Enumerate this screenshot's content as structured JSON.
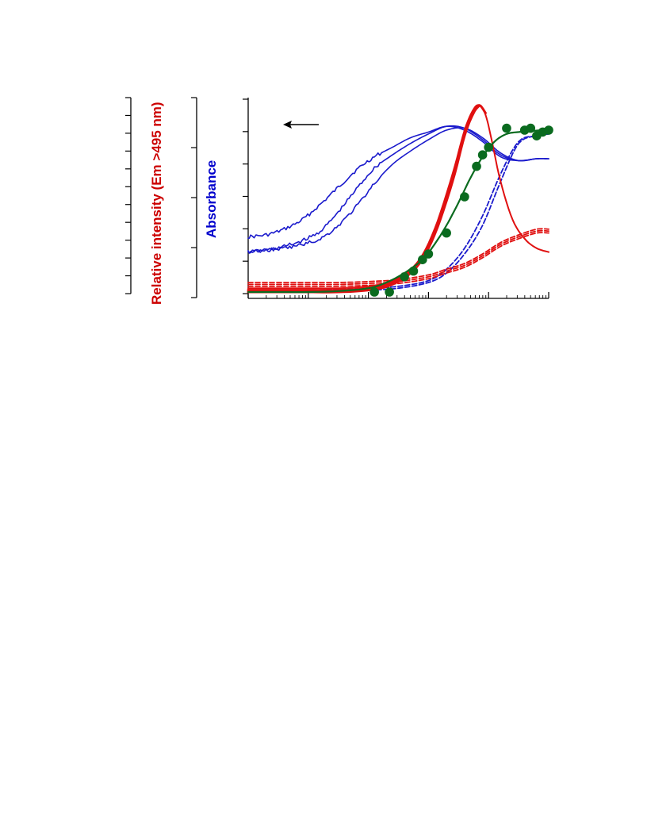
{
  "chart_data": {
    "type": "line",
    "x_scale": "log",
    "axes": {
      "relative_intensity": {
        "label": "Relative intensity (Em >495 nm)",
        "color": "#cc0000",
        "tick_count": 12
      },
      "absorbance": {
        "label": "Absorbance",
        "color": "#0000cc",
        "tick_count": 5
      },
      "main": {
        "tick_count": 7
      }
    },
    "arrow": {
      "direction": "left"
    },
    "colors": {
      "blue": "#1a1acc",
      "red": "#e01010",
      "green": "#0a6b1f",
      "black": "#000000"
    },
    "x_decades": 5,
    "series": [
      {
        "style": "solid",
        "color": "blue",
        "width": 1.6,
        "noise": 1,
        "x": [
          0,
          0.3,
          0.6,
          0.9,
          1.2,
          1.5,
          1.8,
          2.1,
          2.4,
          2.7,
          3.0,
          3.3,
          3.6,
          3.9,
          4.2,
          4.5,
          4.8,
          5.0
        ],
        "y": [
          0.29,
          0.3,
          0.33,
          0.38,
          0.46,
          0.55,
          0.64,
          0.71,
          0.76,
          0.81,
          0.84,
          0.87,
          0.85,
          0.79,
          0.71,
          0.69,
          0.7,
          0.7
        ]
      },
      {
        "style": "solid",
        "color": "blue",
        "width": 1.6,
        "noise": 1,
        "x": [
          0,
          0.3,
          0.6,
          0.9,
          1.2,
          1.5,
          1.8,
          2.1,
          2.4,
          2.7,
          3.0,
          3.3,
          3.6,
          3.9,
          4.2,
          4.5,
          4.8,
          5.0
        ],
        "y": [
          0.21,
          0.22,
          0.24,
          0.27,
          0.32,
          0.42,
          0.54,
          0.65,
          0.72,
          0.78,
          0.83,
          0.87,
          0.86,
          0.8,
          0.72,
          0.69,
          0.7,
          0.7
        ]
      },
      {
        "style": "solid",
        "color": "blue",
        "width": 1.6,
        "noise": 1,
        "x": [
          0,
          0.3,
          0.6,
          0.9,
          1.2,
          1.5,
          1.8,
          2.1,
          2.4,
          2.7,
          3.0,
          3.3,
          3.6,
          3.9,
          4.2,
          4.5,
          4.8,
          5.0
        ],
        "y": [
          0.21,
          0.22,
          0.23,
          0.25,
          0.28,
          0.35,
          0.45,
          0.57,
          0.67,
          0.74,
          0.8,
          0.85,
          0.86,
          0.81,
          0.73,
          0.69,
          0.7,
          0.7
        ]
      },
      {
        "style": "dashed",
        "color": "blue",
        "width": 1.8,
        "x": [
          0,
          0.5,
          1,
          1.5,
          2,
          2.5,
          3,
          3.3,
          3.6,
          3.9,
          4.2,
          4.5,
          4.8,
          5.0
        ],
        "y": [
          0.0,
          0.0,
          0.0,
          0.005,
          0.01,
          0.02,
          0.05,
          0.1,
          0.2,
          0.35,
          0.58,
          0.78,
          0.82,
          0.83
        ]
      },
      {
        "style": "dashed",
        "color": "blue",
        "width": 1.8,
        "x": [
          0,
          0.5,
          1,
          1.5,
          2,
          2.5,
          3,
          3.3,
          3.6,
          3.9,
          4.2,
          4.5,
          4.8,
          5.0
        ],
        "y": [
          0.01,
          0.01,
          0.01,
          0.015,
          0.02,
          0.03,
          0.06,
          0.12,
          0.23,
          0.4,
          0.62,
          0.79,
          0.82,
          0.83
        ]
      },
      {
        "style": "dashed",
        "color": "red",
        "width": 1.8,
        "x": [
          0,
          0.5,
          1,
          1.5,
          2,
          2.5,
          3,
          3.3,
          3.6,
          3.9,
          4.2,
          4.5,
          4.8,
          5.0
        ],
        "y": [
          0.05,
          0.05,
          0.05,
          0.05,
          0.055,
          0.065,
          0.09,
          0.12,
          0.15,
          0.2,
          0.26,
          0.3,
          0.33,
          0.33
        ]
      },
      {
        "style": "dashed",
        "color": "red",
        "width": 1.8,
        "x": [
          0,
          0.5,
          1,
          1.5,
          2,
          2.5,
          3,
          3.3,
          3.6,
          3.9,
          4.2,
          4.5,
          4.8,
          5.0
        ],
        "y": [
          0.04,
          0.04,
          0.04,
          0.04,
          0.045,
          0.055,
          0.08,
          0.11,
          0.14,
          0.19,
          0.25,
          0.29,
          0.32,
          0.32
        ]
      },
      {
        "style": "dashed",
        "color": "red",
        "width": 1.8,
        "x": [
          0,
          0.5,
          1,
          1.5,
          2,
          2.5,
          3,
          3.3,
          3.6,
          3.9,
          4.2,
          4.5,
          4.8,
          5.0
        ],
        "y": [
          0.03,
          0.03,
          0.03,
          0.03,
          0.035,
          0.045,
          0.07,
          0.1,
          0.13,
          0.18,
          0.24,
          0.28,
          0.31,
          0.31
        ]
      },
      {
        "style": "solid",
        "color": "red",
        "width": 2.0,
        "x": [
          0,
          0.5,
          1,
          1.5,
          2,
          2.4,
          2.8,
          3.1,
          3.4,
          3.6,
          3.75,
          3.85,
          3.95,
          4.05,
          4.2,
          4.4,
          4.6,
          4.8,
          5.0
        ],
        "y": [
          0.02,
          0.02,
          0.02,
          0.02,
          0.03,
          0.06,
          0.15,
          0.33,
          0.62,
          0.85,
          0.96,
          0.98,
          0.93,
          0.8,
          0.58,
          0.38,
          0.28,
          0.23,
          0.21
        ]
      },
      {
        "style": "solid",
        "color": "red",
        "width": 3.0,
        "x": [
          0,
          0.5,
          1,
          1.5,
          2,
          2.4,
          2.8,
          3.1,
          3.4,
          3.6,
          3.75,
          3.85,
          3.95
        ],
        "y": [
          0.01,
          0.01,
          0.01,
          0.01,
          0.02,
          0.05,
          0.14,
          0.32,
          0.6,
          0.83,
          0.95,
          0.98,
          0.94
        ]
      },
      {
        "style": "solid",
        "color": "red",
        "width": 3.0,
        "x": [
          0,
          0.5,
          1,
          1.5,
          2,
          2.4,
          2.8,
          3.1,
          3.4,
          3.6,
          3.75,
          3.85
        ],
        "y": [
          0.0,
          0.0,
          0.0,
          0.0,
          0.01,
          0.04,
          0.13,
          0.3,
          0.58,
          0.82,
          0.94,
          0.98
        ]
      },
      {
        "style": "solid",
        "color": "green",
        "width": 2.2,
        "x": [
          0,
          0.5,
          1,
          1.5,
          2,
          2.3,
          2.6,
          2.9,
          3.1,
          3.3,
          3.5,
          3.7,
          3.9,
          4.1,
          4.3,
          4.5,
          4.7,
          4.9,
          5.0
        ],
        "y": [
          0.0,
          0.0,
          0.0,
          0.005,
          0.02,
          0.05,
          0.1,
          0.17,
          0.25,
          0.35,
          0.47,
          0.6,
          0.71,
          0.79,
          0.83,
          0.84,
          0.845,
          0.85,
          0.85
        ]
      }
    ],
    "markers": {
      "color": "green",
      "x": [
        2.1,
        2.35,
        2.6,
        2.75,
        2.9,
        3.0,
        3.3,
        3.6,
        3.8,
        3.9,
        4.0,
        4.3,
        4.6,
        4.7,
        4.8,
        4.9,
        5.0
      ],
      "y": [
        0.0,
        0.0,
        0.08,
        0.11,
        0.17,
        0.2,
        0.31,
        0.5,
        0.66,
        0.72,
        0.76,
        0.86,
        0.85,
        0.86,
        0.82,
        0.84,
        0.85
      ]
    }
  }
}
